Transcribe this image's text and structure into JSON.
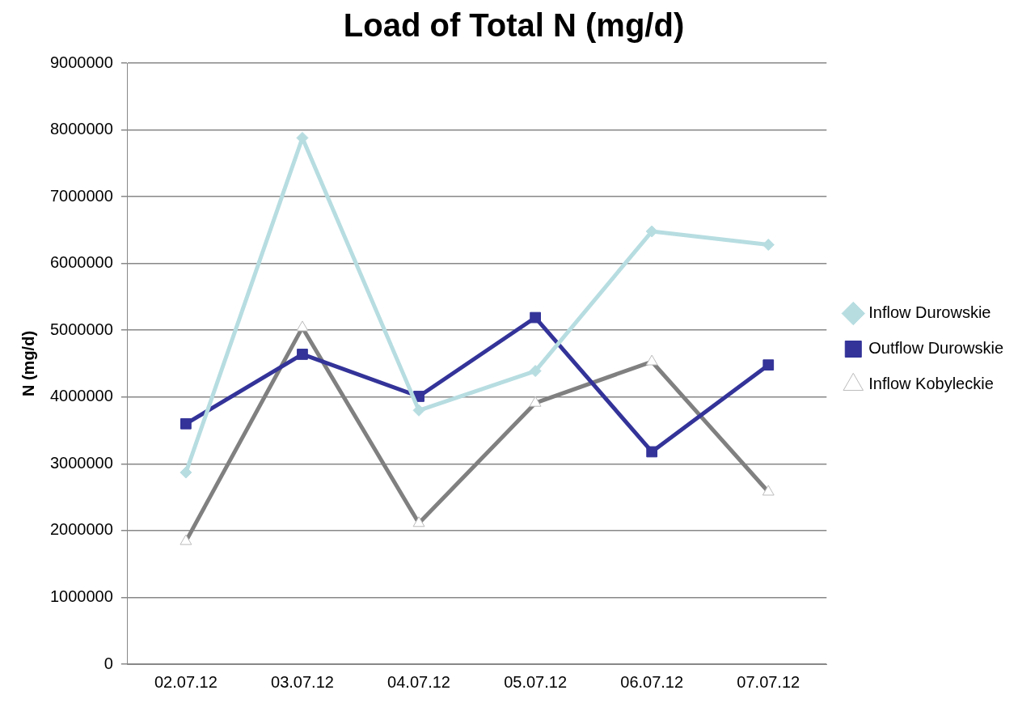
{
  "chart_data": {
    "type": "line",
    "title": "Load of Total N (mg/d)",
    "ylabel": "N (mg/d)",
    "categories": [
      "02.07.12",
      "03.07.12",
      "04.07.12",
      "05.07.12",
      "06.07.12",
      "07.07.12"
    ],
    "series": [
      {
        "name": "Inflow Durowskie",
        "color": "#b7dde1",
        "marker": "diamond",
        "values": [
          2870000,
          7880000,
          3800000,
          4390000,
          6480000,
          6280000
        ]
      },
      {
        "name": "Outflow Durowskie",
        "color": "#333399",
        "marker": "square",
        "values": [
          3600000,
          4640000,
          4010000,
          5190000,
          3180000,
          4480000
        ]
      },
      {
        "name": "Inflow Kobyleckie",
        "color": "#808080",
        "marker": "triangle",
        "values": [
          1840000,
          5040000,
          2110000,
          3910000,
          4530000,
          2580000
        ]
      }
    ],
    "ylim": [
      0,
      9000000
    ],
    "yticks": [
      0,
      1000000,
      2000000,
      3000000,
      4000000,
      5000000,
      6000000,
      7000000,
      8000000,
      9000000
    ],
    "grid": "y",
    "legend": "right",
    "line_style": "solid"
  }
}
